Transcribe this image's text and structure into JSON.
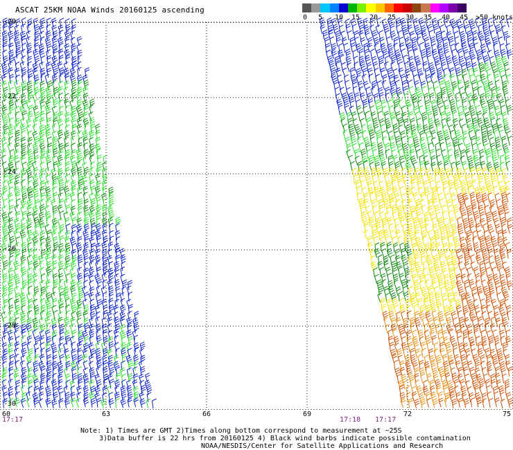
{
  "title": "ASCAT 25KM NOAA Winds 20160125 ascending",
  "colorbar": {
    "labels": [
      "0",
      "5",
      "10",
      "15",
      "20",
      "25",
      "30",
      "35",
      "40",
      "45",
      ">50 knots"
    ],
    "colors": [
      "#555555",
      "#999999",
      "#00c8ff",
      "#0082ff",
      "#0000d0",
      "#00b400",
      "#78f000",
      "#ffff00",
      "#ffc800",
      "#ff6400",
      "#ff0000",
      "#c80000",
      "#8b4513",
      "#c87850",
      "#ff00ff",
      "#b400ff",
      "#7a00aa",
      "#3c0064"
    ]
  },
  "map": {
    "lat_labels": [
      "-20",
      "-22",
      "-24",
      "-26",
      "-28",
      "-30"
    ],
    "lon_labels": [
      "60",
      "63",
      "66",
      "69",
      "72",
      "75"
    ],
    "times": [
      "17:17",
      "17:18",
      "17:17"
    ],
    "grid_color": "#000000"
  },
  "wind_colors": {
    "blue": "#0a20c8",
    "light_green": "#28e028",
    "dark_green": "#0a8a0a",
    "yellow": "#f0e000",
    "orange": "#e88c10",
    "red_orange": "#d05000"
  },
  "notes": {
    "line1": "Note: 1) Times are GMT 2)Times along bottom correspond to measurement at ~25S",
    "line2": "3)Data buffer is 22 hrs from 20160125 4) Black wind barbs indicate possible contamination",
    "line3": "NOAA/NESDIS/Center for Satellite Applications and Research"
  }
}
